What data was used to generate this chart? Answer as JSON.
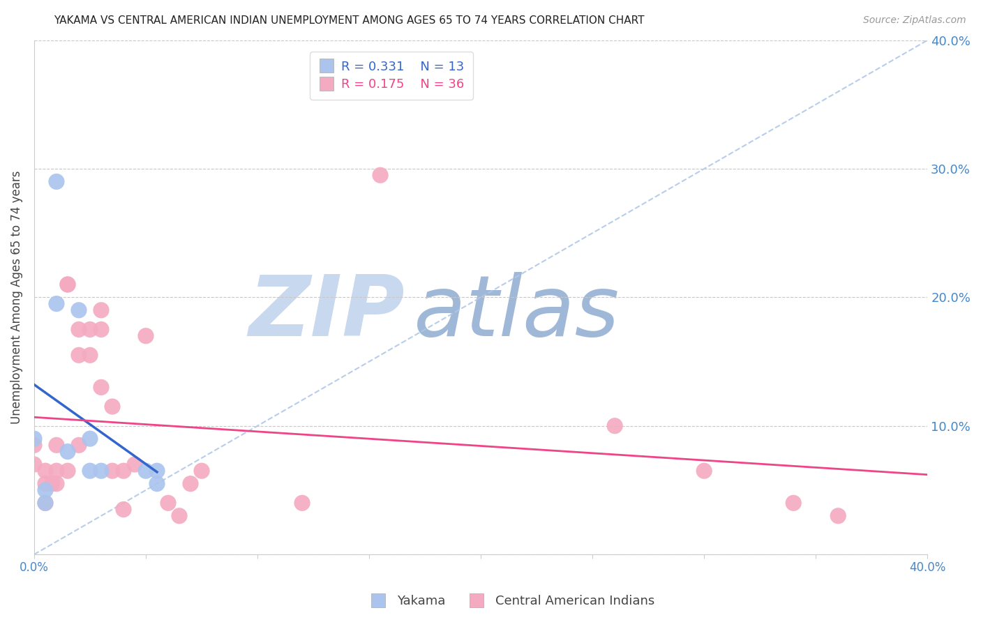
{
  "title": "YAKAMA VS CENTRAL AMERICAN INDIAN UNEMPLOYMENT AMONG AGES 65 TO 74 YEARS CORRELATION CHART",
  "source": "Source: ZipAtlas.com",
  "ylabel": "Unemployment Among Ages 65 to 74 years",
  "xlim": [
    0.0,
    0.4
  ],
  "ylim": [
    0.0,
    0.4
  ],
  "grid_color": "#c8c8c8",
  "background_color": "#ffffff",
  "yakama_color": "#aac4ee",
  "central_american_color": "#f4aac0",
  "legend_R_yakama": "R = 0.331",
  "legend_N_yakama": "N = 13",
  "legend_R_central": "R = 0.175",
  "legend_N_central": "N = 36",
  "yakama_points_x": [
    0.0,
    0.005,
    0.005,
    0.01,
    0.01,
    0.015,
    0.02,
    0.025,
    0.025,
    0.03,
    0.05,
    0.055,
    0.055
  ],
  "yakama_points_y": [
    0.09,
    0.05,
    0.04,
    0.29,
    0.195,
    0.08,
    0.19,
    0.09,
    0.065,
    0.065,
    0.065,
    0.065,
    0.055
  ],
  "central_points_x": [
    0.0,
    0.0,
    0.005,
    0.005,
    0.005,
    0.008,
    0.01,
    0.01,
    0.01,
    0.015,
    0.015,
    0.015,
    0.02,
    0.02,
    0.02,
    0.025,
    0.025,
    0.03,
    0.03,
    0.03,
    0.035,
    0.035,
    0.04,
    0.04,
    0.045,
    0.05,
    0.06,
    0.065,
    0.07,
    0.075,
    0.12,
    0.155,
    0.26,
    0.3,
    0.34,
    0.36
  ],
  "central_points_y": [
    0.085,
    0.07,
    0.065,
    0.055,
    0.04,
    0.055,
    0.085,
    0.065,
    0.055,
    0.21,
    0.21,
    0.065,
    0.175,
    0.155,
    0.085,
    0.175,
    0.155,
    0.19,
    0.175,
    0.13,
    0.115,
    0.065,
    0.065,
    0.035,
    0.07,
    0.17,
    0.04,
    0.03,
    0.055,
    0.065,
    0.04,
    0.295,
    0.1,
    0.065,
    0.04,
    0.03
  ],
  "ref_line_color": "#b0c8e8",
  "yakama_line_color": "#3366cc",
  "central_line_color": "#ee4488",
  "axis_label_color": "#4488cc",
  "tick_color": "#4488cc",
  "watermark_zip_color": "#c8d8ee",
  "watermark_atlas_color": "#a0b8d8"
}
